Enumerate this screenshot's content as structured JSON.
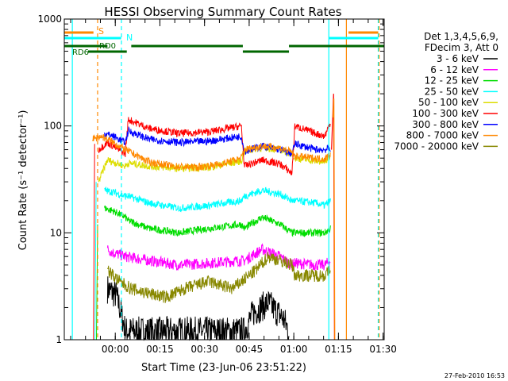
{
  "chart_data": {
    "type": "line",
    "title": "HESSI Observing Summary Count Rates",
    "xlabel": "Start Time (23-Jun-06 23:51:22)",
    "ylabel": "Count Rate (s⁻¹ detector⁻¹)",
    "yscale": "log",
    "ylim": [
      1,
      1000
    ],
    "xlim_minutes": [
      -8.5,
      99
    ],
    "x_ticks": [
      {
        "label": "00:00",
        "minutes": 8.63
      },
      {
        "label": "00:15",
        "minutes": 23.63
      },
      {
        "label": "00:30",
        "minutes": 38.63
      },
      {
        "label": "00:45",
        "minutes": 53.63
      },
      {
        "label": "01:00",
        "minutes": 68.63
      },
      {
        "label": "01:15",
        "minutes": 83.63
      },
      {
        "label": "01:30",
        "minutes": 98.63
      }
    ],
    "y_ticks": [
      "1",
      "10",
      "100",
      "1000"
    ],
    "legend_header": [
      "Det 1,3,4,5,6,9,",
      "FDecim 3, Att 0"
    ],
    "series": [
      {
        "name": "3 - 6 keV",
        "color": "#000000"
      },
      {
        "name": "6 - 12 keV",
        "color": "#ff00ff"
      },
      {
        "name": "12 - 25 keV",
        "color": "#00dd00"
      },
      {
        "name": "25 - 50 keV",
        "color": "#00ffff"
      },
      {
        "name": "50 - 100 keV",
        "color": "#dddd00"
      },
      {
        "name": "100 - 300 keV",
        "color": "#ff0000"
      },
      {
        "name": "300 - 800 keV",
        "color": "#0000ff"
      },
      {
        "name": "800 - 7000 keV",
        "color": "#ff8800"
      },
      {
        "name": "7000 - 20000 keV",
        "color": "#888800"
      }
    ],
    "flags": [
      {
        "label": "S",
        "color": "#ff8800"
      },
      {
        "label": "N",
        "color": "#00ffff"
      },
      {
        "label": "RD0",
        "color": "#006600"
      },
      {
        "label": "RD6",
        "color": "#006600"
      }
    ],
    "timestamp": "27-Feb-2010 16:53"
  }
}
